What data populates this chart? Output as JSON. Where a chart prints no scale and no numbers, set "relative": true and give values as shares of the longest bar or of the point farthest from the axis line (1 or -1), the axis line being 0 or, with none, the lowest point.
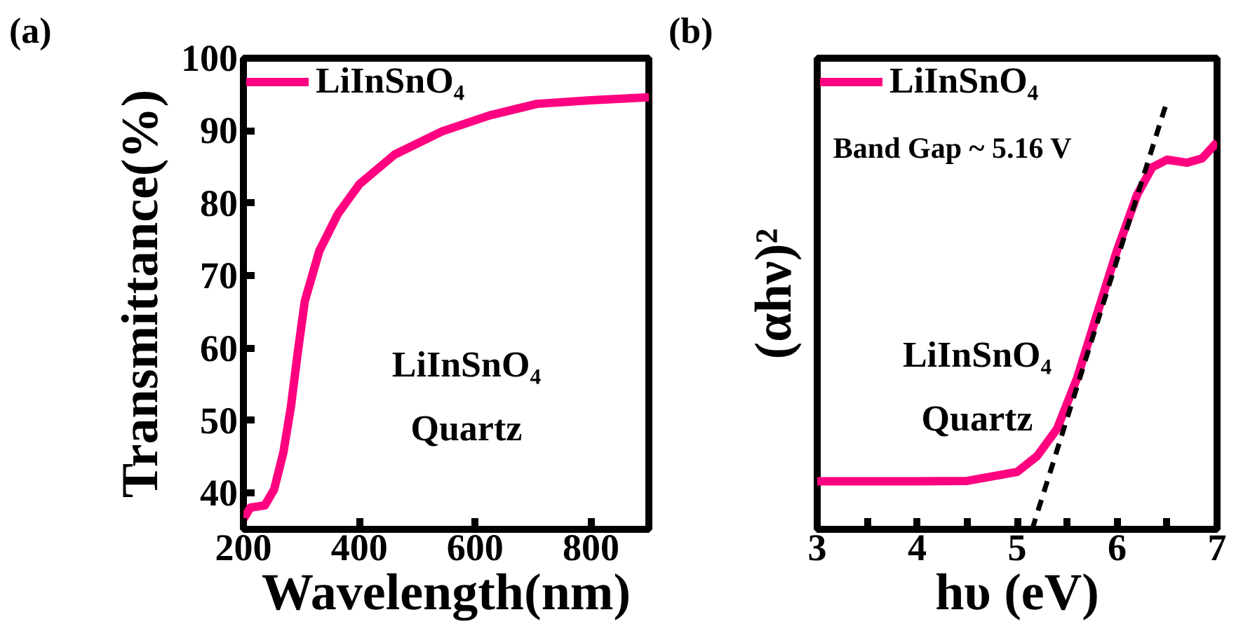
{
  "chart_data": [
    {
      "type": "line",
      "xlabel": "Wavelength(nm)",
      "ylabel": "Transmittance(%)",
      "xlim": [
        200,
        900
      ],
      "xticks": [
        200,
        400,
        600,
        800
      ],
      "ylim": [
        35,
        100
      ],
      "yticks": [
        40,
        50,
        60,
        70,
        80,
        90,
        100
      ],
      "legend": "top left",
      "line_style": "solid",
      "marker": "none",
      "annotations": [
        "(a)",
        "LiInSnO₄",
        "Quartz"
      ],
      "series": [
        {
          "name": "LiInSnO₄",
          "color": "#ff0080",
          "x": [
            200,
            212,
            237,
            253,
            269,
            282,
            294,
            306,
            331,
            363,
            400,
            461,
            543,
            625,
            707,
            800,
            900
          ],
          "values": [
            36.4,
            38,
            38.3,
            40.5,
            45.6,
            51.9,
            59.5,
            66.5,
            73.4,
            78.5,
            82.6,
            86.7,
            89.9,
            92.1,
            93.7,
            94.2,
            94.6
          ]
        }
      ]
    },
    {
      "type": "line",
      "relative": true,
      "xlabel": "hυ (eV)",
      "ylabel": "(αhν)²",
      "xlim": [
        3,
        7
      ],
      "xticks": [
        3,
        {
          "value": 3.5,
          "label": null
        },
        4,
        {
          "value": 4.5,
          "label": null
        },
        5,
        {
          "value": 5.5,
          "label": null
        },
        6,
        {
          "value": 6.5,
          "label": null
        },
        7
      ],
      "legend": "top left",
      "marker": "none",
      "annotations": [
        "(b)",
        "Band Gap ~ 5.16 V",
        "LiInSnO₄",
        "Quartz"
      ],
      "series": [
        {
          "name": "LiInSnO₄",
          "color": "#ff0080",
          "line_style": "solid",
          "x": [
            3,
            4,
            4.5,
            5,
            5.2,
            5.4,
            5.6,
            5.8,
            6.0,
            6.2,
            6.35,
            6.5,
            6.7,
            6.85,
            7
          ],
          "values": [
            0.112,
            0.112,
            0.113,
            0.134,
            0.171,
            0.235,
            0.353,
            0.503,
            0.652,
            0.781,
            0.845,
            0.863,
            0.856,
            0.866,
            0.904
          ]
        },
        {
          "color": "#000000",
          "line_style": "dashed",
          "x": [
            5.15,
            6.5
          ],
          "values": [
            0,
            1.0
          ]
        }
      ]
    }
  ]
}
